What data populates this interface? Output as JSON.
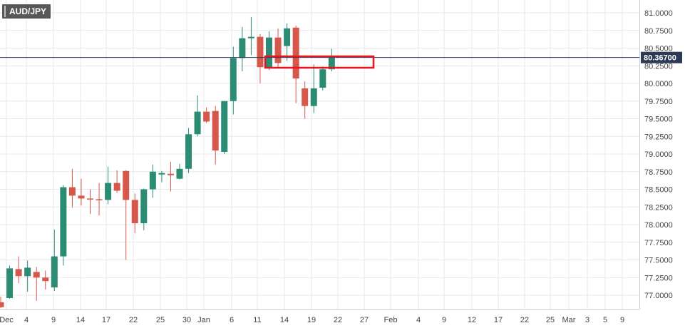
{
  "chart_data": {
    "type": "candlestick",
    "symbol": "AUD/JPY",
    "current_price": 80.367,
    "current_price_label": "80.36700",
    "ylim": [
      76.85,
      81.2
    ],
    "y_ticks": [
      "77.0000",
      "77.2500",
      "77.5000",
      "77.7500",
      "78.0000",
      "78.2500",
      "78.5000",
      "78.7500",
      "79.0000",
      "79.2500",
      "79.5000",
      "79.7500",
      "80.0000",
      "80.2500",
      "80.5000",
      "80.7500",
      "81.0000"
    ],
    "x_ticks": [
      "Dec",
      "4",
      "9",
      "14",
      "17",
      "22",
      "25",
      "30",
      "Jan",
      "6",
      "11",
      "14",
      "19",
      "22",
      "27",
      "Feb",
      "4",
      "9",
      "12",
      "17",
      "22",
      "25",
      "Mar",
      "3",
      "5",
      "9"
    ],
    "grid": true,
    "colors": {
      "up": "#2b8c73",
      "down": "#d5584a",
      "grid": "#e6e9ef",
      "price_line": "#2b3a55",
      "highlight": "#e8141e",
      "axis_text": "#444444",
      "price_badge": "#2b3a55"
    },
    "candles": [
      {
        "o": 76.9,
        "h": 76.98,
        "l": 76.82,
        "c": 76.83
      },
      {
        "o": 76.96,
        "h": 77.42,
        "l": 76.95,
        "c": 77.38
      },
      {
        "o": 77.37,
        "h": 77.55,
        "l": 77.17,
        "c": 77.27
      },
      {
        "o": 77.27,
        "h": 77.49,
        "l": 77.05,
        "c": 77.39
      },
      {
        "o": 77.33,
        "h": 77.4,
        "l": 76.92,
        "c": 77.25
      },
      {
        "o": 77.25,
        "h": 77.35,
        "l": 77.08,
        "c": 77.2
      },
      {
        "o": 77.11,
        "h": 77.93,
        "l": 77.06,
        "c": 77.55
      },
      {
        "o": 77.55,
        "h": 78.56,
        "l": 77.42,
        "c": 78.53
      },
      {
        "o": 78.53,
        "h": 78.79,
        "l": 78.24,
        "c": 78.41
      },
      {
        "o": 78.41,
        "h": 78.65,
        "l": 78.27,
        "c": 78.37
      },
      {
        "o": 78.37,
        "h": 78.5,
        "l": 78.15,
        "c": 78.36
      },
      {
        "o": 78.36,
        "h": 78.59,
        "l": 78.13,
        "c": 78.35
      },
      {
        "o": 78.35,
        "h": 78.82,
        "l": 78.29,
        "c": 78.59
      },
      {
        "o": 78.59,
        "h": 78.77,
        "l": 78.45,
        "c": 78.48
      },
      {
        "o": 78.76,
        "h": 78.77,
        "l": 77.5,
        "c": 78.35
      },
      {
        "o": 78.35,
        "h": 78.44,
        "l": 77.88,
        "c": 78.02
      },
      {
        "o": 78.02,
        "h": 78.51,
        "l": 77.92,
        "c": 78.5
      },
      {
        "o": 78.5,
        "h": 78.85,
        "l": 78.38,
        "c": 78.75
      },
      {
        "o": 78.71,
        "h": 78.76,
        "l": 78.6,
        "c": 78.73
      },
      {
        "o": 78.72,
        "h": 78.89,
        "l": 78.47,
        "c": 78.7
      },
      {
        "o": 78.65,
        "h": 78.86,
        "l": 78.64,
        "c": 78.79
      },
      {
        "o": 78.79,
        "h": 79.37,
        "l": 78.73,
        "c": 79.28
      },
      {
        "o": 79.28,
        "h": 79.83,
        "l": 79.25,
        "c": 79.6
      },
      {
        "o": 79.6,
        "h": 79.66,
        "l": 79.44,
        "c": 79.46
      },
      {
        "o": 79.61,
        "h": 79.68,
        "l": 78.85,
        "c": 79.05
      },
      {
        "o": 79.03,
        "h": 79.75,
        "l": 79.0,
        "c": 79.75
      },
      {
        "o": 79.75,
        "h": 80.52,
        "l": 79.56,
        "c": 80.36
      },
      {
        "o": 80.36,
        "h": 80.8,
        "l": 80.17,
        "c": 80.64
      },
      {
        "o": 80.64,
        "h": 80.94,
        "l": 80.4,
        "c": 80.66
      },
      {
        "o": 80.66,
        "h": 80.7,
        "l": 80.0,
        "c": 80.23
      },
      {
        "o": 80.23,
        "h": 80.74,
        "l": 80.19,
        "c": 80.65
      },
      {
        "o": 80.65,
        "h": 80.78,
        "l": 80.21,
        "c": 80.29
      },
      {
        "o": 80.53,
        "h": 80.85,
        "l": 80.32,
        "c": 80.78
      },
      {
        "o": 80.79,
        "h": 80.82,
        "l": 79.72,
        "c": 80.07
      },
      {
        "o": 79.93,
        "h": 80.03,
        "l": 79.5,
        "c": 79.68
      },
      {
        "o": 79.68,
        "h": 80.27,
        "l": 79.58,
        "c": 79.93
      },
      {
        "o": 79.94,
        "h": 80.24,
        "l": 79.9,
        "c": 80.2
      },
      {
        "o": 80.2,
        "h": 80.49,
        "l": 80.17,
        "c": 80.367
      }
    ]
  }
}
